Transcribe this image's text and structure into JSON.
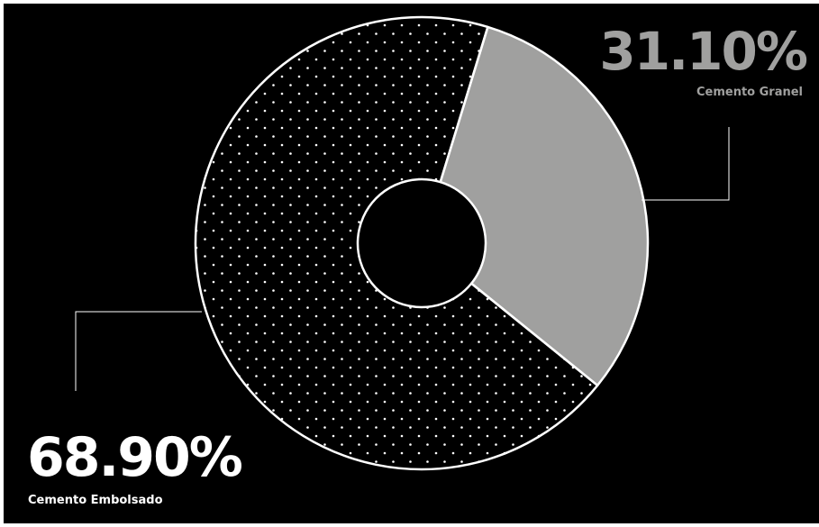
{
  "colors": {
    "background": "#000000",
    "granel_fill": "#a0a09f",
    "embolsado_fill": "#000000",
    "stroke": "#ffffff",
    "granel_label": "#a0a09f",
    "embolsado_label": "#ffffff"
  },
  "labels": {
    "granel_pct": "31.10%",
    "granel_name": "Cemento Granel",
    "embolsado_pct": "68.90%",
    "embolsado_name": "Cemento Embolsado"
  },
  "chart_data": {
    "type": "pie",
    "variant": "donut",
    "categories": [
      "Cemento Embolsado",
      "Cemento Granel"
    ],
    "values": [
      68.9,
      31.1
    ],
    "unit": "%",
    "patterns": [
      "dots",
      "solid"
    ]
  }
}
